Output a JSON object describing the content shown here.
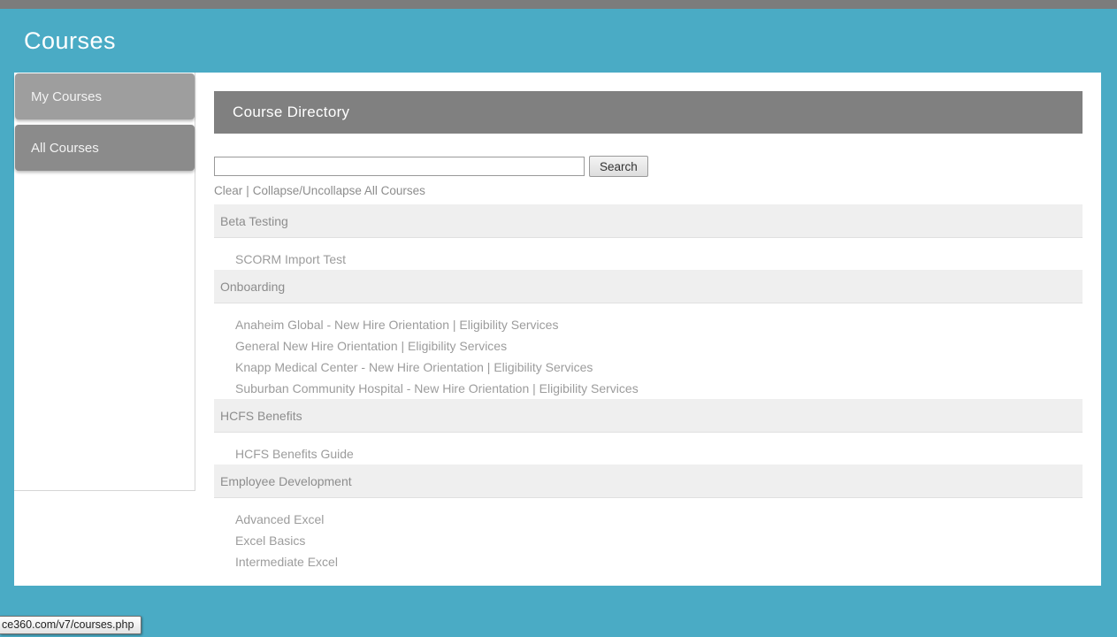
{
  "page": {
    "title": "Courses"
  },
  "sidebar": {
    "items": [
      {
        "label": "My Courses"
      },
      {
        "label": "All Courses"
      }
    ]
  },
  "main": {
    "panel_title": "Course Directory",
    "search": {
      "value": "",
      "placeholder": "",
      "button_label": "Search"
    },
    "links": {
      "clear": "Clear",
      "separator": "|",
      "collapse": "Collapse/Uncollapse All Courses"
    },
    "categories": [
      {
        "name": "Beta Testing",
        "courses": [
          "SCORM Import Test"
        ]
      },
      {
        "name": "Onboarding",
        "courses": [
          "Anaheim Global - New Hire Orientation | Eligibility Services",
          "General New Hire Orientation | Eligibility Services",
          "Knapp Medical Center - New Hire Orientation | Eligibility Services",
          "Suburban Community Hospital - New Hire Orientation | Eligibility Services"
        ]
      },
      {
        "name": "HCFS Benefits",
        "courses": [
          "HCFS Benefits Guide"
        ]
      },
      {
        "name": "Employee Development",
        "courses": [
          "Advanced Excel",
          "Excel Basics",
          "Intermediate Excel"
        ]
      }
    ]
  },
  "status_bar": {
    "url": "ce360.com/v7/courses.php"
  },
  "colors": {
    "accent_teal": "#4aabc5",
    "top_strip_gray": "#7c7c7c",
    "panel_bar_gray": "#808080",
    "tab_light_gray": "#9e9e9e",
    "tab_dark_gray": "#8b8b8b",
    "category_band_gray": "#efefef",
    "label_gray": "#8d8d8d",
    "course_link_gray": "#9c9c9c"
  }
}
